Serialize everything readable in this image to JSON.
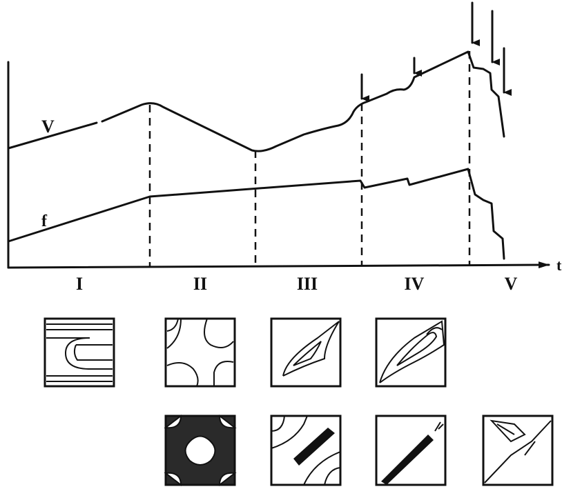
{
  "curves": [
    {
      "label": "V"
    },
    {
      "label": "f"
    }
  ],
  "axis": {
    "label": "t"
  },
  "stages": [
    "I",
    "II",
    "III",
    "IV",
    "V"
  ]
}
